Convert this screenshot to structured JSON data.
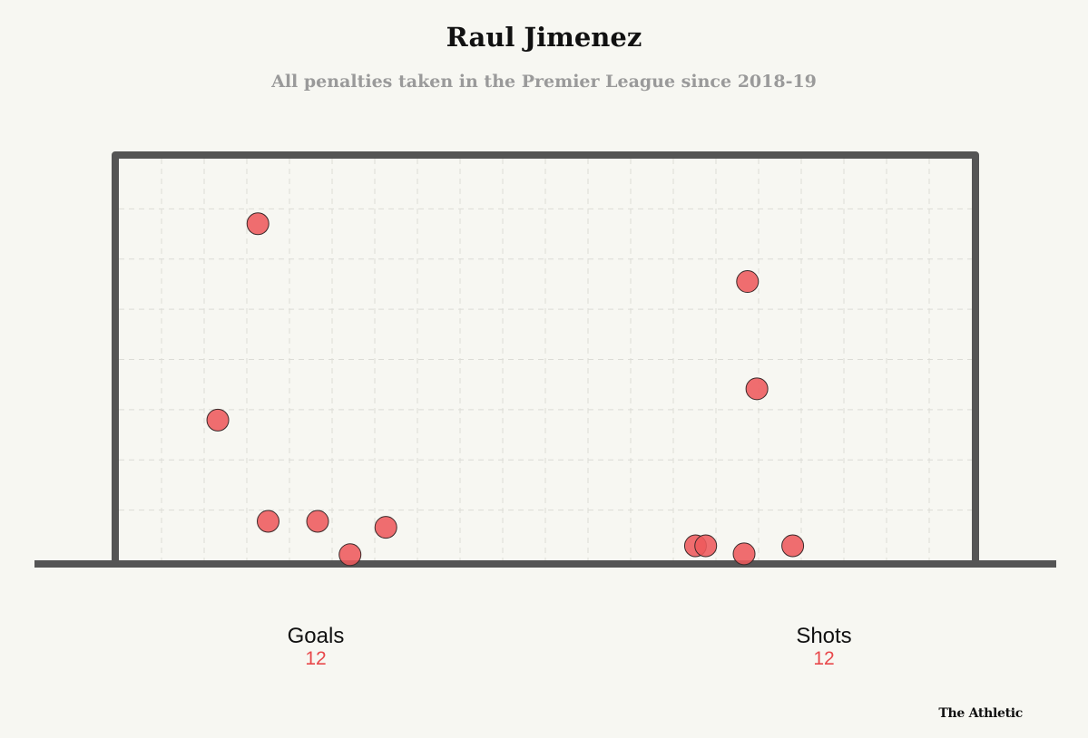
{
  "chart_data": {
    "type": "scatter",
    "title": "Raul Jimenez",
    "subtitle": "All penalties taken in the Premier League since 2018-19",
    "xlabel": "",
    "ylabel": "",
    "xlim": [
      0,
      1
    ],
    "ylim": [
      0,
      1
    ],
    "grid": true,
    "series": [
      {
        "x": [
          0.163,
          0.116,
          0.175,
          0.233,
          0.271,
          0.313,
          0.676,
          0.688,
          0.733,
          0.79,
          0.737,
          0.748
        ],
        "y": [
          0.838,
          0.349,
          0.097,
          0.097,
          0.014,
          0.082,
          0.036,
          0.036,
          0.016,
          0.036,
          0.694,
          0.427
        ]
      }
    ],
    "marker_color": "#ee5a5c"
  },
  "stats": {
    "goals_label": "Goals",
    "goals_value": "12",
    "shots_label": "Shots",
    "shots_value": "12"
  },
  "brand": "The Athletic"
}
